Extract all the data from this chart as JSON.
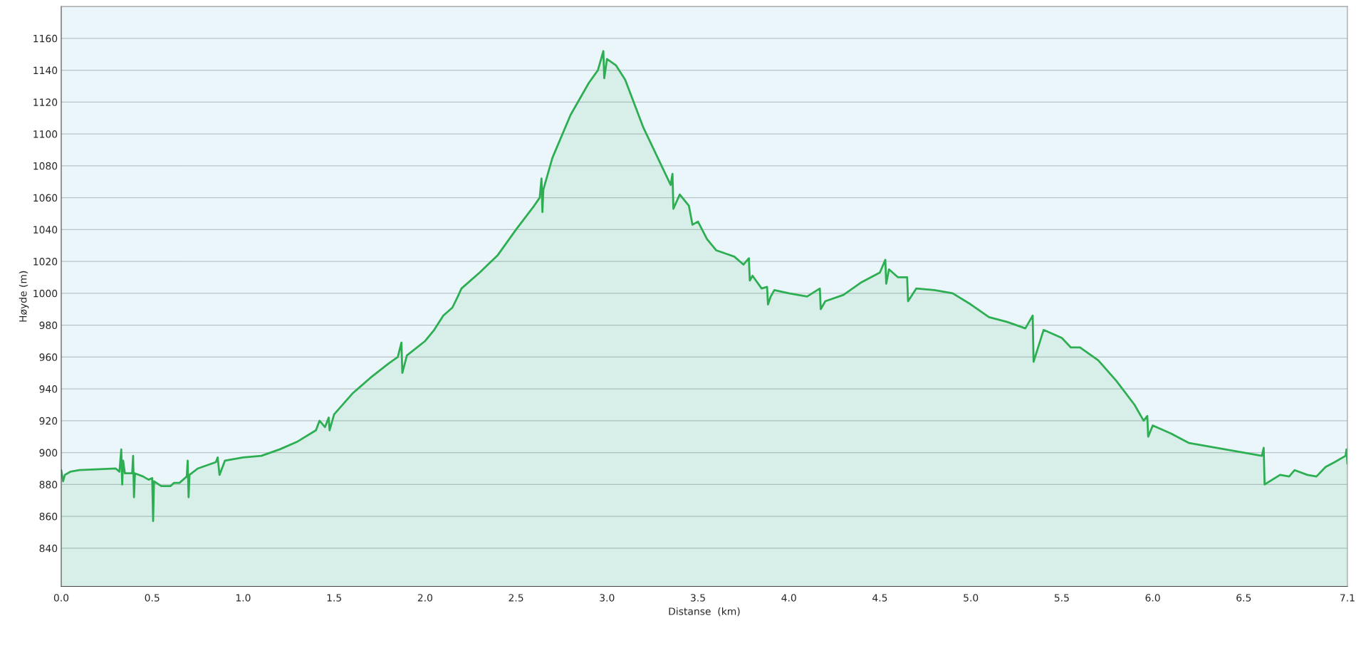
{
  "chart_data": {
    "type": "area",
    "xlabel": "Distanse  (km)",
    "ylabel": "Høyde (m)",
    "xlim": [
      0,
      7.07
    ],
    "xticks": [
      {
        "value": 0,
        "label": "0.0"
      },
      0.5,
      {
        "value": 1,
        "label": "1.0"
      },
      1.5,
      {
        "value": 2,
        "label": "2.0"
      },
      2.5,
      {
        "value": 3,
        "label": "3.0"
      },
      3.5,
      {
        "value": 4,
        "label": "4.0"
      },
      4.5,
      {
        "value": 5,
        "label": "5.0"
      },
      5.5,
      {
        "value": 6,
        "label": "6.0"
      },
      6.5,
      {
        "value": 7.07,
        "label": "7.1"
      }
    ],
    "ylim": [
      816,
      1180
    ],
    "yticks": [
      840,
      860,
      880,
      900,
      920,
      940,
      960,
      980,
      1000,
      1020,
      1040,
      1060,
      1080,
      1100,
      1120,
      1140,
      1160
    ],
    "grid": "y",
    "series": [
      {
        "color": "#2eae52",
        "x": [
          0.0,
          0.01,
          0.02,
          0.05,
          0.1,
          0.3,
          0.32,
          0.33,
          0.335,
          0.34,
          0.35,
          0.39,
          0.395,
          0.4,
          0.405,
          0.45,
          0.48,
          0.5,
          0.505,
          0.51,
          0.55,
          0.6,
          0.62,
          0.65,
          0.69,
          0.695,
          0.7,
          0.705,
          0.75,
          0.8,
          0.85,
          0.86,
          0.87,
          0.9,
          1.0,
          1.1,
          1.2,
          1.3,
          1.4,
          1.42,
          1.45,
          1.47,
          1.475,
          1.5,
          1.6,
          1.7,
          1.8,
          1.85,
          1.87,
          1.875,
          1.9,
          2.0,
          2.05,
          2.1,
          2.15,
          2.18,
          2.2,
          2.3,
          2.4,
          2.5,
          2.6,
          2.63,
          2.64,
          2.645,
          2.65,
          2.7,
          2.8,
          2.9,
          2.95,
          2.98,
          2.985,
          3.0,
          3.05,
          3.1,
          3.2,
          3.3,
          3.35,
          3.36,
          3.365,
          3.4,
          3.45,
          3.47,
          3.5,
          3.55,
          3.6,
          3.7,
          3.75,
          3.78,
          3.785,
          3.8,
          3.85,
          3.88,
          3.885,
          3.9,
          3.92,
          4.0,
          4.1,
          4.17,
          4.175,
          4.2,
          4.3,
          4.4,
          4.5,
          4.53,
          4.535,
          4.55,
          4.6,
          4.65,
          4.655,
          4.7,
          4.8,
          4.9,
          5.0,
          5.1,
          5.2,
          5.3,
          5.34,
          5.345,
          5.4,
          5.5,
          5.55,
          5.6,
          5.7,
          5.8,
          5.9,
          5.95,
          5.97,
          5.975,
          6.0,
          6.1,
          6.2,
          6.3,
          6.4,
          6.5,
          6.6,
          6.61,
          6.615,
          6.7,
          6.75,
          6.78,
          6.85,
          6.9,
          6.95,
          7.0,
          7.06,
          7.065,
          7.07
        ],
        "values": [
          889,
          882,
          886,
          888,
          889,
          890,
          888,
          902,
          880,
          895,
          887,
          887,
          898,
          872,
          887,
          885,
          883,
          884,
          857,
          882,
          879,
          879,
          881,
          881,
          885,
          895,
          872,
          886,
          890,
          892,
          894,
          897,
          886,
          895,
          897,
          898,
          902,
          907,
          914,
          920,
          916,
          922,
          914,
          924,
          937,
          947,
          956,
          960,
          969,
          950,
          961,
          970,
          977,
          986,
          991,
          998,
          1003,
          1013,
          1024,
          1040,
          1055,
          1060,
          1072,
          1051,
          1065,
          1085,
          1112,
          1132,
          1140,
          1152,
          1135,
          1147,
          1143,
          1134,
          1104,
          1080,
          1068,
          1075,
          1053,
          1062,
          1055,
          1043,
          1045,
          1034,
          1027,
          1023,
          1018,
          1022,
          1008,
          1011,
          1003,
          1004,
          993,
          998,
          1002,
          1000,
          998,
          1003,
          990,
          995,
          999,
          1007,
          1013,
          1021,
          1006,
          1015,
          1010,
          1010,
          995,
          1003,
          1002,
          1000,
          993,
          985,
          982,
          978,
          986,
          957,
          977,
          972,
          966,
          966,
          958,
          945,
          930,
          920,
          923,
          910,
          917,
          912,
          906,
          904,
          902,
          900,
          898,
          903,
          880,
          886,
          885,
          889,
          886,
          885,
          891,
          894,
          898,
          902,
          893
        ]
      }
    ]
  }
}
